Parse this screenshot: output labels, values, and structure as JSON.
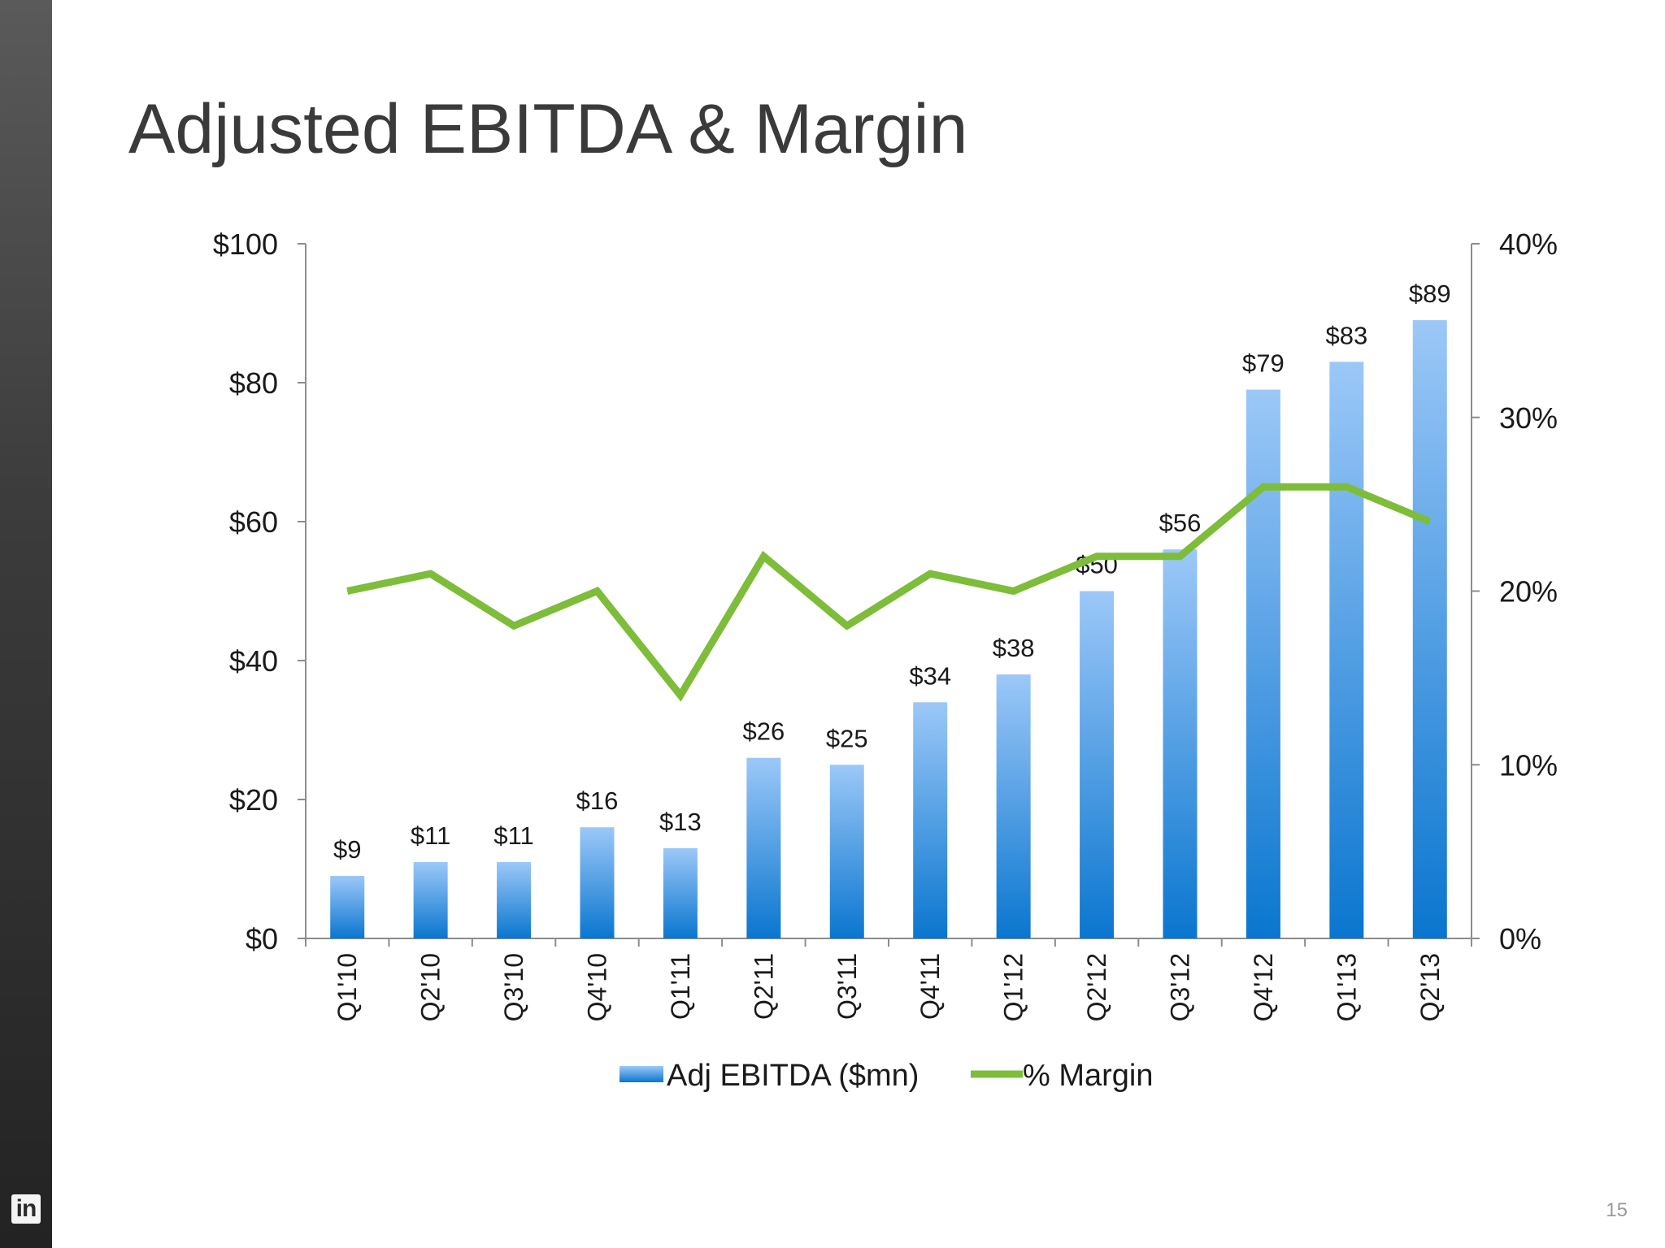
{
  "slide": {
    "title": "Adjusted EBITDA & Margin",
    "page_number": "15",
    "logo_text": "in"
  },
  "colors": {
    "bar_top": "#9cc8f8",
    "bar_bottom": "#0a76cf",
    "line": "#7dbd39",
    "axis": "#8c8c8c",
    "sidebar": "#3c3c3c"
  },
  "chart_data": {
    "type": "bar",
    "categories": [
      "Q1'10",
      "Q2'10",
      "Q3'10",
      "Q4'10",
      "Q1'11",
      "Q2'11",
      "Q3'11",
      "Q4'11",
      "Q1'12",
      "Q2'12",
      "Q3'12",
      "Q4'12",
      "Q1'13",
      "Q2'13"
    ],
    "series": [
      {
        "name": "Adj EBITDA ($mn)",
        "type": "bar",
        "axis": "left",
        "values": [
          9,
          11,
          11,
          16,
          13,
          26,
          25,
          34,
          38,
          50,
          56,
          79,
          83,
          89
        ],
        "labels": [
          "$9",
          "$11",
          "$11",
          "$16",
          "$13",
          "$26",
          "$25",
          "$34",
          "$38",
          "$50",
          "$56",
          "$79",
          "$83",
          "$89"
        ]
      },
      {
        "name": "% Margin",
        "type": "line",
        "axis": "right",
        "values": [
          20,
          21,
          18,
          20,
          14,
          22,
          18,
          21,
          20,
          22,
          22,
          26,
          26,
          24
        ]
      }
    ],
    "y_left": {
      "lim": [
        0,
        100
      ],
      "ticks": [
        "$0",
        "$20",
        "$40",
        "$60",
        "$80",
        "$100"
      ]
    },
    "y_right": {
      "lim": [
        0,
        40
      ],
      "ticks": [
        "0%",
        "10%",
        "20%",
        "30%",
        "40%"
      ]
    },
    "legend_position": "bottom",
    "grid": false
  }
}
